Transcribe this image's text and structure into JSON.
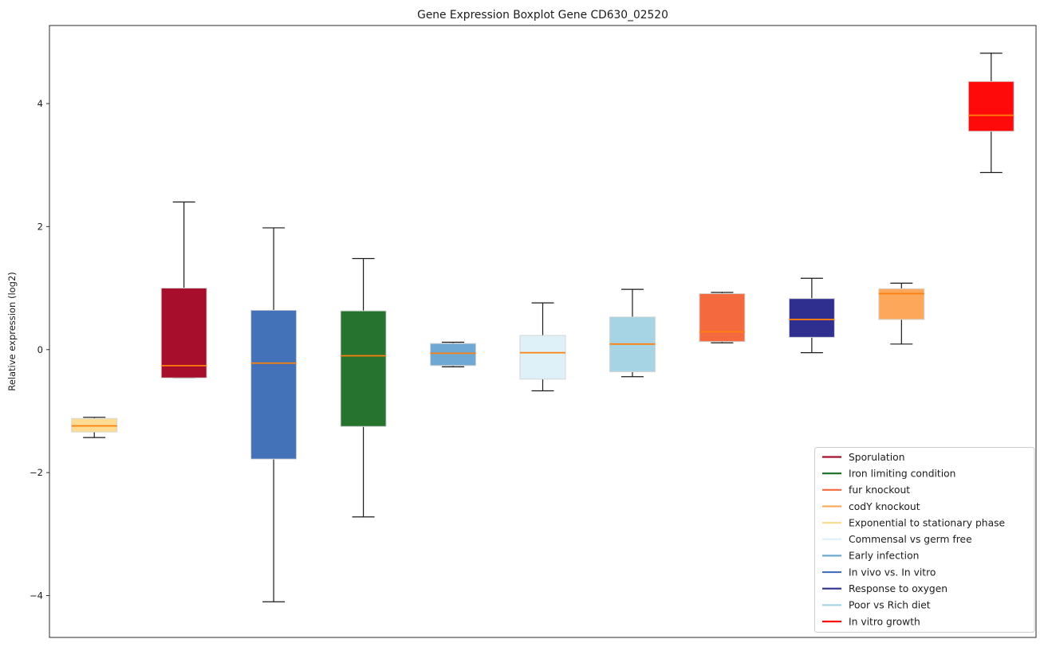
{
  "figure": {
    "title": "Gene Expression Boxplot Gene CD630_02520",
    "ylabel": "Relative expression (log2)"
  },
  "chart_data": {
    "type": "boxplot",
    "title": "Gene Expression Boxplot Gene CD630_02520",
    "xlabel": "",
    "ylabel": "Relative expression (log2)",
    "ylim": [
      -4.68,
      5.27
    ],
    "yticks": [
      -4,
      -2,
      0,
      2,
      4
    ],
    "x_tick_labels": [],
    "grid": false,
    "boxes": [
      {
        "condition": "Exponential to stationary phase",
        "color": "#fcdc92",
        "whislo": -1.43,
        "q1": -1.34,
        "med": -1.24,
        "q3": -1.12,
        "whishi": -1.1
      },
      {
        "condition": "Sporulation",
        "color": "#a60e2c",
        "whislo": -0.46,
        "q1": -0.46,
        "med": -0.26,
        "q3": 1.0,
        "whishi": 2.4
      },
      {
        "condition": "In vivo vs. In vitro",
        "color": "#4472b8",
        "whislo": -4.1,
        "q1": -1.78,
        "med": -0.22,
        "q3": 0.64,
        "whishi": 1.98
      },
      {
        "condition": "Iron limiting condition",
        "color": "#26722f",
        "whislo": -2.72,
        "q1": -1.25,
        "med": -0.1,
        "q3": 0.63,
        "whishi": 1.48
      },
      {
        "condition": "Early infection",
        "color": "#6fa8d2",
        "whislo": -0.28,
        "q1": -0.26,
        "med": -0.06,
        "q3": 0.1,
        "whishi": 0.12
      },
      {
        "condition": "Commensal vs germ free",
        "color": "#def0f8",
        "whislo": -0.67,
        "q1": -0.48,
        "med": -0.05,
        "q3": 0.23,
        "whishi": 0.76
      },
      {
        "condition": "Poor vs Rich diet",
        "color": "#a7d4e4",
        "whislo": -0.44,
        "q1": -0.36,
        "med": 0.09,
        "q3": 0.53,
        "whishi": 0.98
      },
      {
        "condition": "fur knockout",
        "color": "#f5693e",
        "whislo": 0.11,
        "q1": 0.13,
        "med": 0.29,
        "q3": 0.91,
        "whishi": 0.93
      },
      {
        "condition": "Response to oxygen",
        "color": "#2e2f8f",
        "whislo": -0.05,
        "q1": 0.2,
        "med": 0.49,
        "q3": 0.83,
        "whishi": 1.16
      },
      {
        "condition": "codY knockout",
        "color": "#fca759",
        "whislo": 0.09,
        "q1": 0.49,
        "med": 0.91,
        "q3": 0.99,
        "whishi": 1.08
      },
      {
        "condition": "In vitro growth",
        "color": "#ff0a0a",
        "whislo": 2.88,
        "q1": 3.55,
        "med": 3.81,
        "q3": 4.36,
        "whishi": 4.82
      }
    ],
    "legend": {
      "position": "lower right",
      "entries": [
        {
          "label": "Sporulation",
          "color": "#a60e2c"
        },
        {
          "label": "Iron limiting condition",
          "color": "#26722f"
        },
        {
          "label": "fur knockout",
          "color": "#f5693e"
        },
        {
          "label": "codY knockout",
          "color": "#fca759"
        },
        {
          "label": "Exponential to stationary phase",
          "color": "#fcdc92"
        },
        {
          "label": "Commensal vs germ free",
          "color": "#def0f8"
        },
        {
          "label": "Early infection",
          "color": "#6fa8d2"
        },
        {
          "label": "In vivo vs. In vitro",
          "color": "#4472b8"
        },
        {
          "label": "Response to oxygen",
          "color": "#2e2f8f"
        },
        {
          "label": "Poor vs Rich diet",
          "color": "#a7d4e4"
        },
        {
          "label": "In vitro growth",
          "color": "#ff0a0a"
        }
      ]
    },
    "style": {
      "median_color": "#ff7f0e",
      "whisker_color": "#1a1a1a",
      "box_edge_color": "#d5d5d5",
      "spine_color": "#2b2b2b",
      "legend_border_color": "#cccccc"
    }
  }
}
